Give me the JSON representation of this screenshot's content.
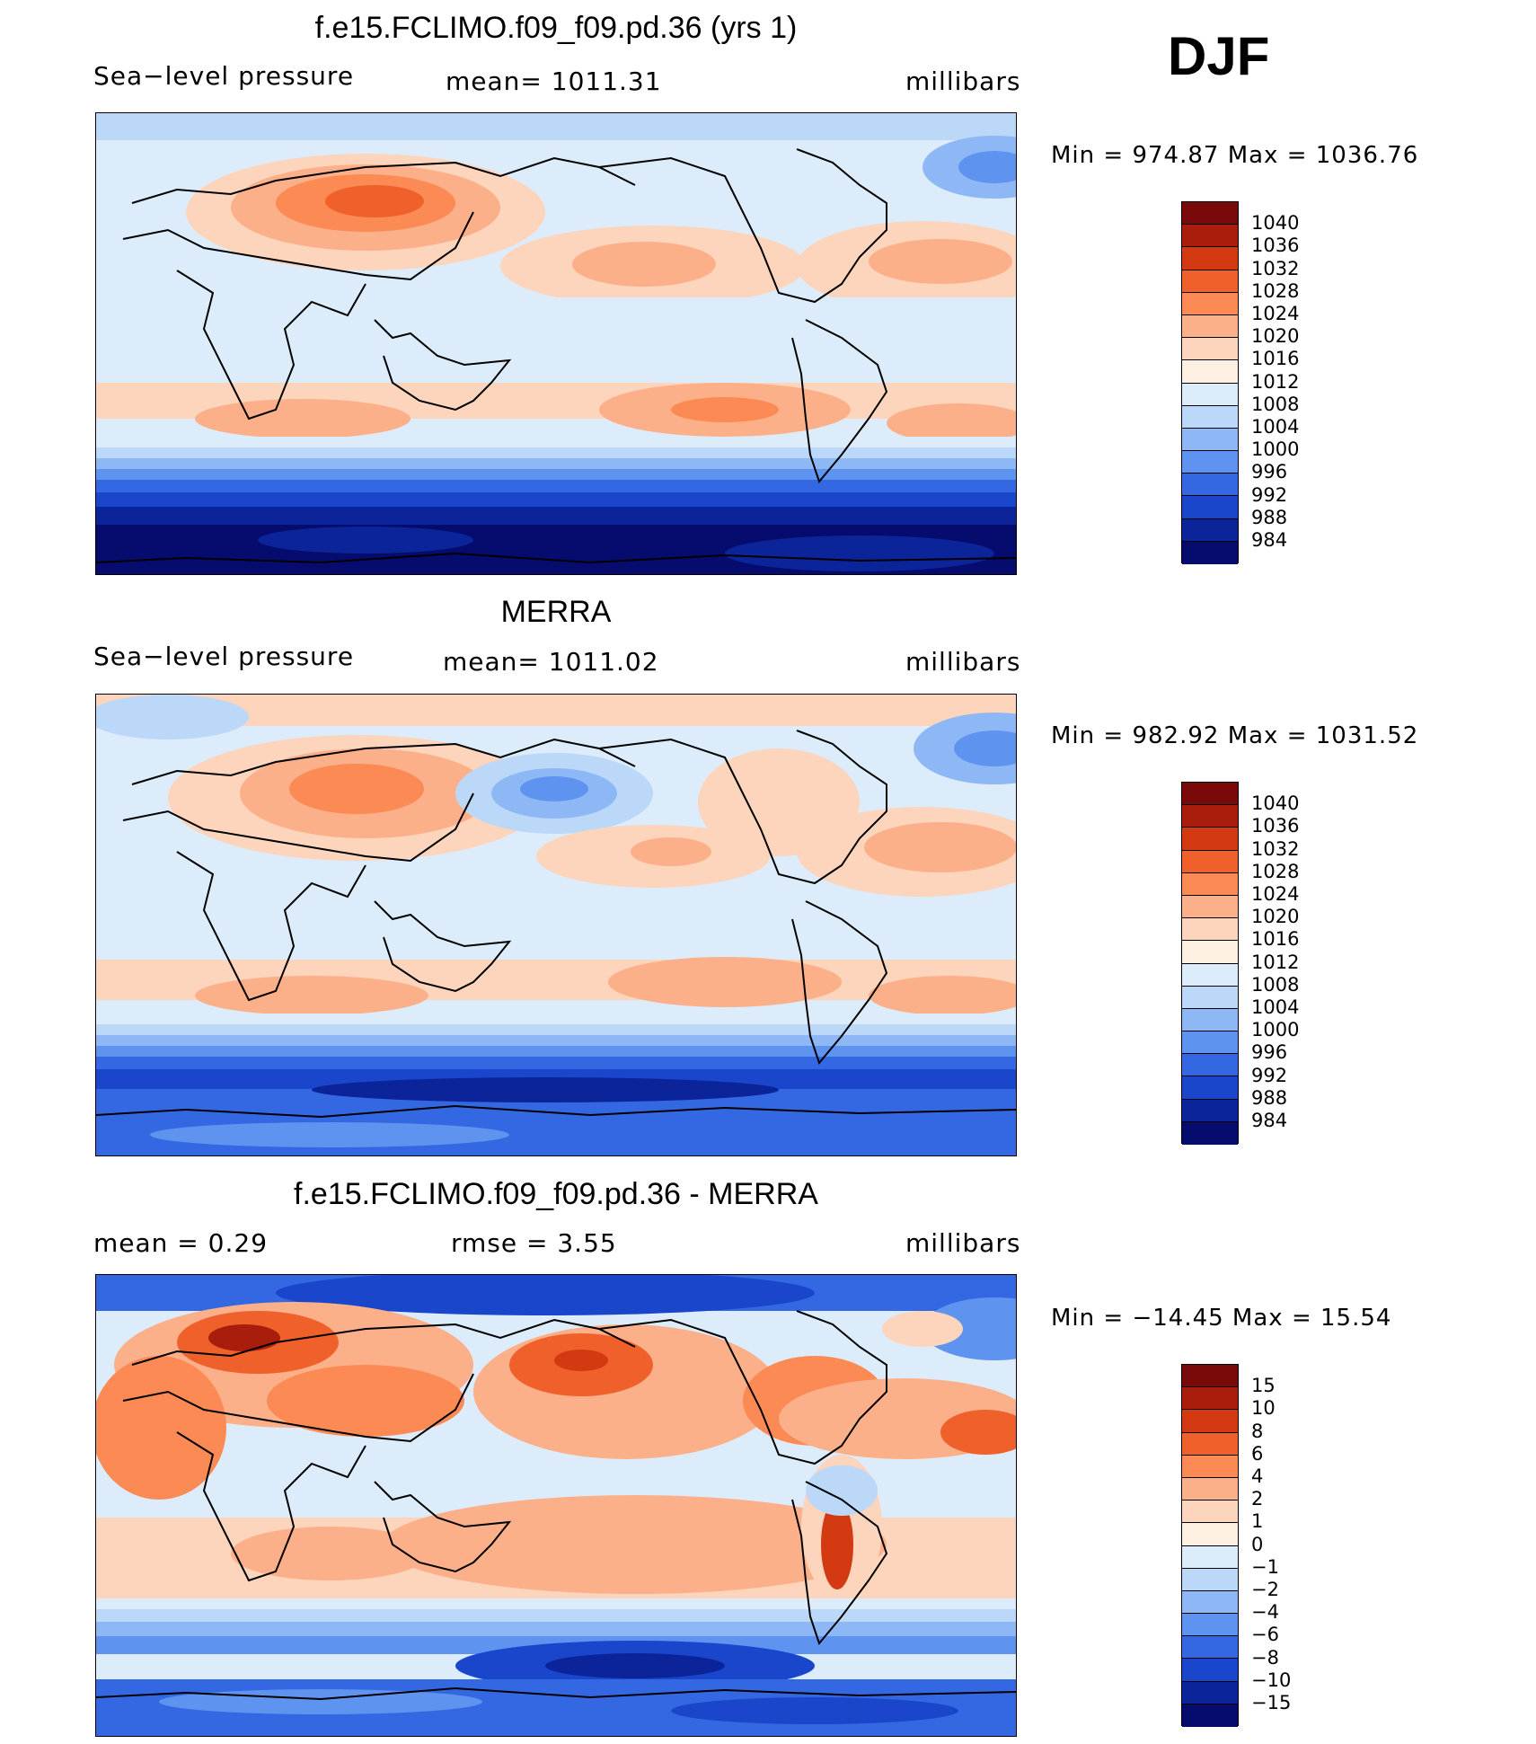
{
  "season": "DJF",
  "panels": [
    {
      "title": "f.e15.FCLIMO.f09_f09.pd.36 (yrs 1)",
      "left_label": "Sea−level pressure",
      "center_label": "mean=  1011.31",
      "right_label": "millibars",
      "minmax": "Min  =  974.87  Max  =  1036.76",
      "colorbar": {
        "levels": [
          "1040",
          "1036",
          "1032",
          "1028",
          "1024",
          "1020",
          "1016",
          "1012",
          "1008",
          "1004",
          "1000",
          "996",
          "992",
          "988",
          "984"
        ],
        "colors": [
          "#7a0a0a",
          "#a81d0c",
          "#d43a12",
          "#f0602a",
          "#fb8a55",
          "#fcb08a",
          "#fdd4bc",
          "#fff0e4",
          "#dcecfb",
          "#bcd8f8",
          "#8eb8f5",
          "#5e93ef",
          "#3468e3",
          "#1a46cc",
          "#0c249a",
          "#050c6e"
        ]
      }
    },
    {
      "title": "MERRA",
      "left_label": "Sea−level pressure",
      "center_label": "mean=  1011.02",
      "right_label": "millibars",
      "minmax": "Min  =  982.92  Max  =  1031.52",
      "colorbar": {
        "levels": [
          "1040",
          "1036",
          "1032",
          "1028",
          "1024",
          "1020",
          "1016",
          "1012",
          "1008",
          "1004",
          "1000",
          "996",
          "992",
          "988",
          "984"
        ],
        "colors": [
          "#7a0a0a",
          "#a81d0c",
          "#d43a12",
          "#f0602a",
          "#fb8a55",
          "#fcb08a",
          "#fdd4bc",
          "#fff0e4",
          "#dcecfb",
          "#bcd8f8",
          "#8eb8f5",
          "#5e93ef",
          "#3468e3",
          "#1a46cc",
          "#0c249a",
          "#050c6e"
        ]
      }
    },
    {
      "title": "f.e15.FCLIMO.f09_f09.pd.36 - MERRA",
      "left_label": "mean  =      0.29",
      "center_label": "rmse  =      3.55",
      "right_label": "millibars",
      "minmax": "Min  =  −14.45  Max  =      15.54",
      "colorbar": {
        "levels": [
          "15",
          "10",
          "8",
          "6",
          "4",
          "2",
          "1",
          "0",
          "−1",
          "−2",
          "−4",
          "−6",
          "−8",
          "−10",
          "−15"
        ],
        "colors": [
          "#7a0a0a",
          "#a81d0c",
          "#d43a12",
          "#f0602a",
          "#fb8a55",
          "#fcb08a",
          "#fdd4bc",
          "#fff0e4",
          "#dcecfb",
          "#bcd8f8",
          "#8eb8f5",
          "#5e93ef",
          "#3468e3",
          "#1a46cc",
          "#0c249a",
          "#050c6e"
        ]
      }
    }
  ]
}
